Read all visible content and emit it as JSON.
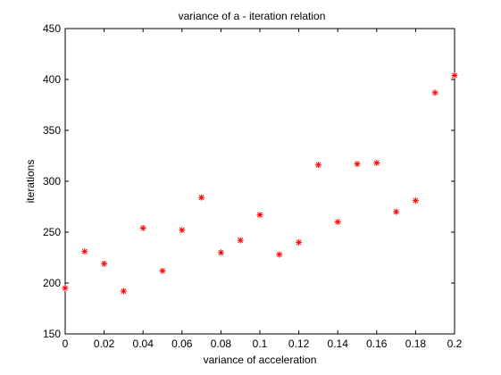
{
  "chart_data": {
    "type": "scatter",
    "title": "variance of a - iteration relation",
    "xlabel": "variance of acceleration",
    "ylabel": "iterations",
    "xlim": [
      0,
      0.2
    ],
    "ylim": [
      150,
      450
    ],
    "x_ticks": [
      0,
      0.02,
      0.04,
      0.06,
      0.08,
      0.1,
      0.12,
      0.14,
      0.16,
      0.18,
      0.2
    ],
    "x_tick_labels": [
      "0",
      "0.02",
      "0.04",
      "0.06",
      "0.08",
      "0.1",
      "0.12",
      "0.14",
      "0.16",
      "0.18",
      "0.2"
    ],
    "y_ticks": [
      150,
      200,
      250,
      300,
      350,
      400,
      450
    ],
    "y_tick_labels": [
      "150",
      "200",
      "250",
      "300",
      "350",
      "400",
      "450"
    ],
    "grid": false,
    "marker": "asterisk",
    "marker_color": "#ff0000",
    "x": [
      0,
      0.01,
      0.02,
      0.03,
      0.04,
      0.05,
      0.06,
      0.07,
      0.08,
      0.09,
      0.1,
      0.11,
      0.12,
      0.13,
      0.14,
      0.15,
      0.16,
      0.17,
      0.18,
      0.19,
      0.2
    ],
    "y": [
      195,
      231,
      219,
      192,
      254,
      212,
      252,
      284,
      230,
      242,
      267,
      228,
      240,
      316,
      260,
      317,
      318,
      270,
      281,
      387,
      404
    ]
  }
}
